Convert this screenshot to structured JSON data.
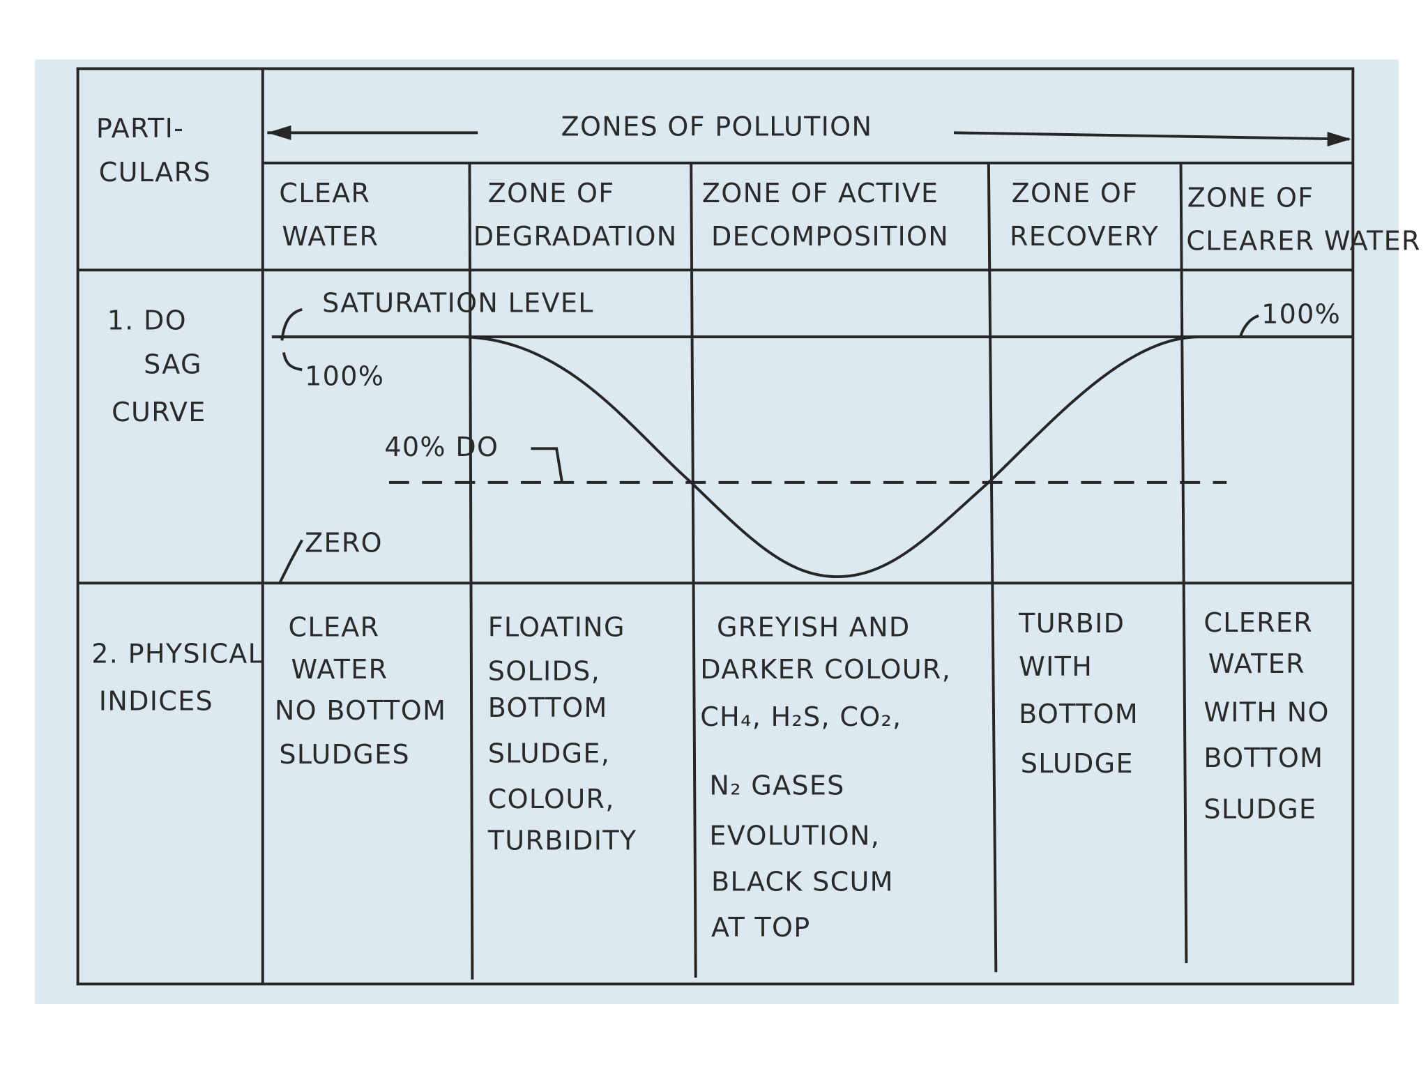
{
  "header": {
    "particulars": [
      "PARTI-",
      "CULARS"
    ],
    "title": "ZONES OF POLLUTION",
    "zones": [
      [
        "CLEAR",
        "WATER"
      ],
      [
        "ZONE OF",
        "DEGRADATION"
      ],
      [
        "ZONE OF ACTIVE",
        "DECOMPOSITION"
      ],
      [
        "ZONE OF",
        "RECOVERY"
      ],
      [
        "ZONE OF",
        "CLEARER WATER"
      ]
    ]
  },
  "do_sag_curve": {
    "label": [
      "1. DO",
      "SAG",
      "CURVE"
    ],
    "saturation_level": "SATURATION LEVEL",
    "start_label": "100%",
    "end_label": "100%",
    "critical_label": "40% DO",
    "zero_label": "ZERO"
  },
  "physical_indices": {
    "label": [
      "2. PHYSICAL",
      "INDICES"
    ],
    "cells": [
      [
        "CLEAR",
        "WATER",
        "NO BOTTOM",
        "SLUDGES"
      ],
      [
        "FLOATING",
        "SOLIDS,",
        "BOTTOM",
        "SLUDGE,",
        "COLOUR,",
        "TURBIDITY"
      ],
      [
        "GREYISH AND",
        "DARKER COLOUR,",
        "CH₄, H₂S, CO₂,",
        "N₂ GASES",
        "EVOLUTION,",
        "BLACK SCUM",
        "AT TOP"
      ],
      [
        "TURBID",
        "WITH",
        "BOTTOM",
        "SLUDGE"
      ],
      [
        "CLERER",
        "WATER",
        "WITH NO",
        "BOTTOM",
        "SLUDGE"
      ]
    ]
  }
}
